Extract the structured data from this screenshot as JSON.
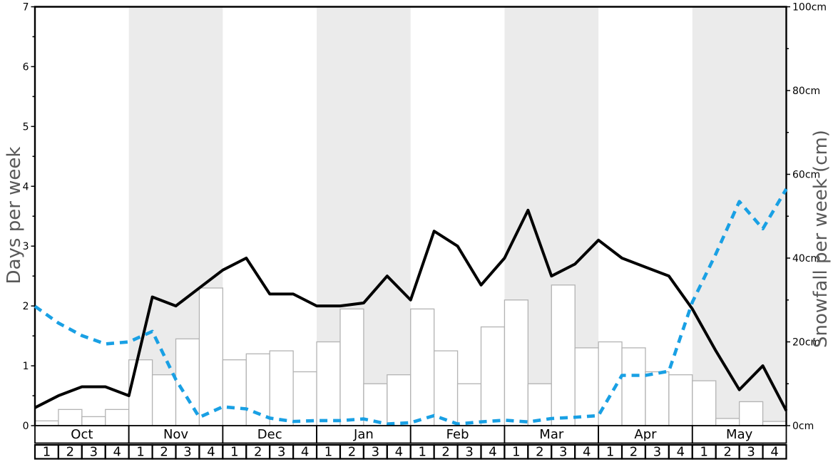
{
  "chart_data": {
    "type": "line",
    "title": "",
    "months": [
      "Oct",
      "Nov",
      "Dec",
      "Jan",
      "Feb",
      "Mar",
      "Apr",
      "May"
    ],
    "week_labels": [
      "1",
      "2",
      "3",
      "4"
    ],
    "shaded_months": [
      "Nov",
      "Jan",
      "Mar",
      "May"
    ],
    "band_color": "#ebebeb",
    "left_axis": {
      "label": "Days per week",
      "min": 0,
      "max": 7,
      "tick_labels": [
        "0",
        "1",
        "2",
        "3",
        "4",
        "5",
        "6",
        "7"
      ],
      "major_tick_step": 1,
      "minor_tick_step": 0.5
    },
    "right_axis": {
      "label": "Snowfall per week (cm)",
      "min": 0,
      "max": 100,
      "tick_labels": [
        "0cm",
        "20cm",
        "40cm",
        "60cm",
        "80cm",
        "100cm"
      ],
      "major_tick_step": 20,
      "minor_tick_step": 10,
      "tick_suffix": "cm"
    },
    "grid": "off",
    "legend": "none",
    "x_layout_note": "32 weekly slots (8 months x 4 weeks); line series have 33 points, first point on the left axis",
    "series": [
      {
        "name": "days_per_week",
        "type": "line",
        "style": "solid",
        "color": "#000000",
        "axis": "left",
        "first_point_at_axis": true,
        "values": [
          0.3,
          0.5,
          0.65,
          0.65,
          0.5,
          2.15,
          2.0,
          2.3,
          2.6,
          2.8,
          2.2,
          2.2,
          2.0,
          2.0,
          2.05,
          2.5,
          2.1,
          3.25,
          3.0,
          2.35,
          2.8,
          3.6,
          2.5,
          2.7,
          3.1,
          2.8,
          2.65,
          2.5,
          1.95,
          1.25,
          0.6,
          1.0,
          0.25
        ]
      },
      {
        "name": "snowfall_per_week_cm",
        "type": "line",
        "style": "dashed",
        "color": "#19a0e4",
        "axis": "right",
        "first_point_at_axis": true,
        "values": [
          28.5,
          24.5,
          21.5,
          19.5,
          20,
          22.5,
          11,
          2,
          4.5,
          4,
          1.8,
          1,
          1.2,
          1.2,
          1.6,
          0.4,
          0.7,
          2.4,
          0.4,
          0.9,
          1.3,
          0.9,
          1.7,
          2,
          2.4,
          12,
          12,
          13,
          29.5,
          41,
          53.5,
          47,
          56.5
        ]
      },
      {
        "name": "weekly_bars",
        "type": "bar",
        "fill": "#ffffff",
        "border_color": "#b3b3b3",
        "axis": "left",
        "values": [
          0.08,
          0.27,
          0.15,
          0.27,
          1.1,
          0.85,
          1.45,
          2.3,
          1.1,
          1.2,
          1.25,
          0.9,
          1.4,
          1.95,
          0.7,
          0.85,
          1.95,
          1.25,
          0.7,
          1.65,
          2.1,
          0.7,
          2.35,
          1.3,
          1.4,
          1.3,
          0.9,
          0.85,
          0.75,
          0.12,
          0.4,
          0.07
        ]
      }
    ]
  }
}
